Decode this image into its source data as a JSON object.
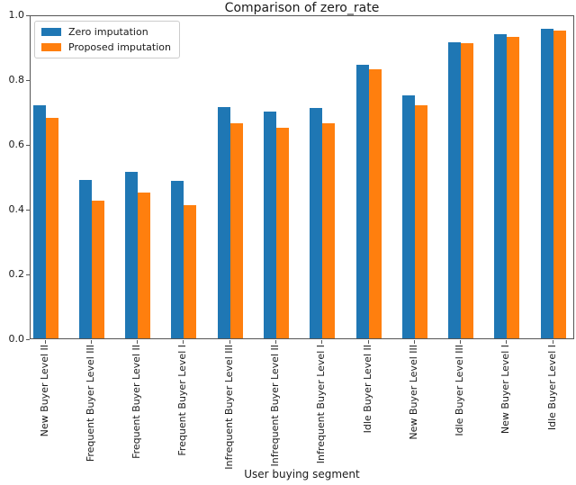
{
  "title": "Comparison of zero_rate",
  "chart_data": {
    "type": "bar",
    "title": "Comparison of zero_rate",
    "xlabel": "User buying segment",
    "ylabel": "",
    "ylim": [
      0.0,
      1.0
    ],
    "ytick_labels": [
      "0.0",
      "0.2",
      "0.4",
      "0.6",
      "0.8",
      "1.0"
    ],
    "yticks": [
      0.0,
      0.2,
      0.4,
      0.6,
      0.8,
      1.0
    ],
    "grid": false,
    "legend_position": "upper left",
    "xtick_rotation": 90,
    "categories": [
      "New Buyer Level II",
      "Frequent Buyer Level III",
      "Frequent Buyer Level II",
      "Frequent Buyer Level I",
      "Infrequent Buyer Level III",
      "Infrequent Buyer Level II",
      "Infrequent Buyer Level I",
      "Idle Buyer Level II",
      "New Buyer Level III",
      "Idle Buyer Level III",
      "New Buyer Level I",
      "Idle Buyer Level I"
    ],
    "series": [
      {
        "name": "Zero imputation",
        "color": "#1f77b4",
        "values": [
          0.72,
          0.49,
          0.515,
          0.485,
          0.715,
          0.7,
          0.71,
          0.845,
          0.75,
          0.915,
          0.94,
          0.955
        ]
      },
      {
        "name": "Proposed imputation",
        "color": "#ff7f0e",
        "values": [
          0.68,
          0.425,
          0.45,
          0.41,
          0.665,
          0.65,
          0.665,
          0.83,
          0.72,
          0.91,
          0.93,
          0.95
        ]
      }
    ]
  },
  "colors": {
    "background": "#ffffff",
    "spine": "#555555",
    "text": "#1a1a1a",
    "legend_border": "#cccccc",
    "series_blue": "#1f77b4",
    "series_orange": "#ff7f0e"
  }
}
